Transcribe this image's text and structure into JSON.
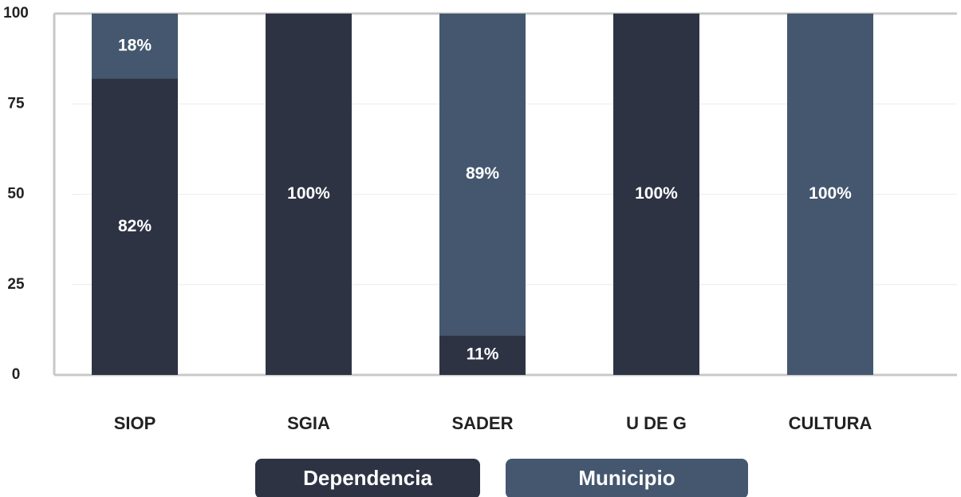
{
  "chart_data": {
    "type": "stacked_bar",
    "categories": [
      "SIOP",
      "SGIA",
      "SADER",
      "U DE G",
      "CULTURA"
    ],
    "series": [
      {
        "name": "Dependencia",
        "color": "#2e3344",
        "values": [
          82,
          100,
          11,
          100,
          0
        ],
        "value_labels": [
          "82%",
          "100%",
          "11%",
          "100%",
          null
        ]
      },
      {
        "name": "Municipio",
        "color": "#44576f",
        "values": [
          18,
          0,
          89,
          0,
          100
        ],
        "value_labels": [
          "18%",
          null,
          "89%",
          null,
          "100%"
        ]
      }
    ],
    "ylim": [
      0,
      100
    ],
    "yticks": [
      0,
      25,
      50,
      75,
      100
    ],
    "grid": true,
    "legend": "bottom"
  }
}
